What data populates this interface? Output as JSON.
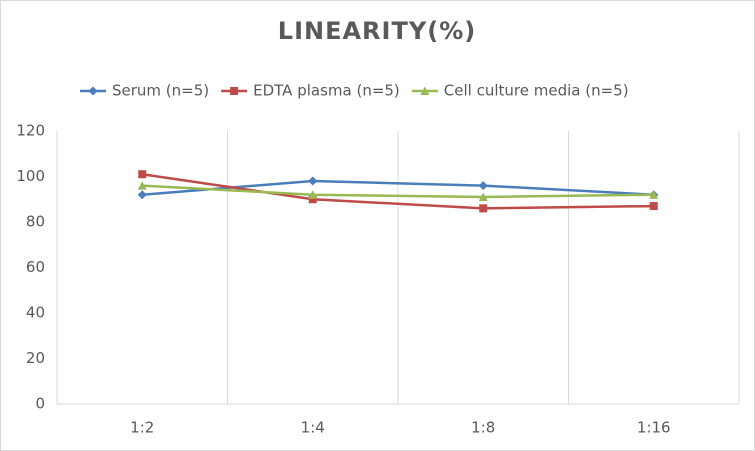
{
  "chart_data": {
    "type": "line",
    "title": "LINEARITY(%)",
    "categories": [
      "1:2",
      "1:4",
      "1:8",
      "1:16"
    ],
    "series": [
      {
        "name": "Serum (n=5)",
        "color": "#4a7ebb",
        "marker": "diamond",
        "values": [
          92,
          98,
          96,
          92
        ]
      },
      {
        "name": "EDTA plasma (n=5)",
        "color": "#be4b48",
        "marker": "square",
        "values": [
          101,
          90,
          86,
          87
        ]
      },
      {
        "name": "Cell culture media (n=5)",
        "color": "#98b954",
        "marker": "triangle",
        "values": [
          96,
          92,
          91,
          92
        ]
      }
    ],
    "ylim": [
      0,
      120
    ],
    "yticks": [
      0,
      20,
      40,
      60,
      80,
      100,
      120
    ],
    "grid": true,
    "legend": "top"
  }
}
